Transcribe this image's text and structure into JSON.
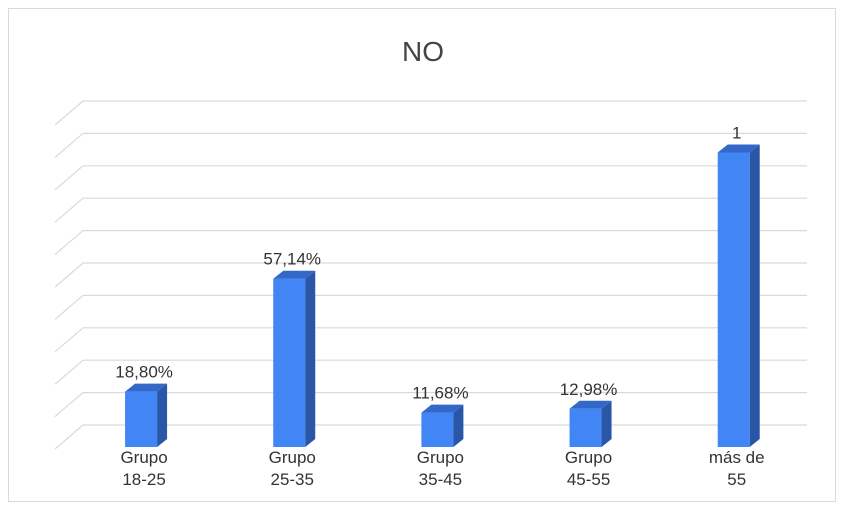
{
  "chart_data": {
    "type": "bar",
    "title": "NO",
    "categories": [
      [
        "Grupo",
        "18-25"
      ],
      [
        "Grupo",
        "25-35"
      ],
      [
        "Grupo",
        "35-45"
      ],
      [
        "Grupo",
        "45-55"
      ],
      [
        "más de",
        "55"
      ]
    ],
    "values": [
      0.188,
      0.5714,
      0.1168,
      0.1298,
      1.0
    ],
    "data_labels": [
      "18,80%",
      "57,14%",
      "11,68%",
      "12,98%",
      "1"
    ],
    "ylim": [
      0,
      1.1
    ],
    "grid": true,
    "bar_color": "#4285f4",
    "bar_side_color": "#2a56a8",
    "bar_top_color": "#3367c8",
    "grid_color": "#d9d9d9"
  }
}
